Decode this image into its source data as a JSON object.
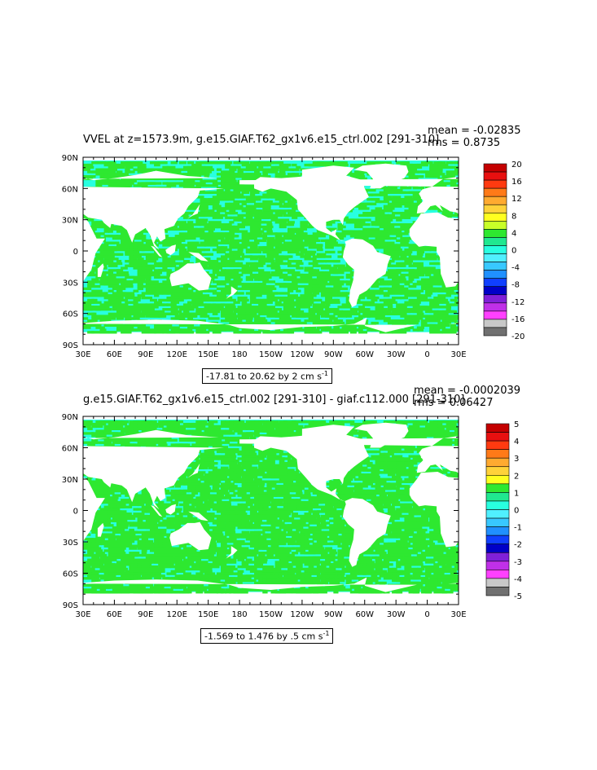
{
  "panels": [
    {
      "title": "VVEL at z=1573.9m, g.e15.GIAF.T62_gx1v6.e15_ctrl.002 [291-310]",
      "mean_label": "mean = -0.02835",
      "rms_label": "rms = 0.8735",
      "range_label": "-17.81 to 20.62 by 2 cm s",
      "range_unit_exp": "-1",
      "colorbar": {
        "labels": [
          "20",
          "16",
          "12",
          "8",
          "4",
          "0",
          "-4",
          "-8",
          "-12",
          "-16",
          "-20"
        ],
        "colors": [
          "#c40000",
          "#e81010",
          "#ff3a10",
          "#ff7a18",
          "#ffaa30",
          "#ffd23a",
          "#ffff20",
          "#c8ff28",
          "#2ee830",
          "#20e890",
          "#28ffe0",
          "#50f0ff",
          "#38c8ff",
          "#2090ff",
          "#1040ff",
          "#0000c8",
          "#8020d8",
          "#c030e8",
          "#ff40ff",
          "#c8c8c8",
          "#707070"
        ]
      }
    },
    {
      "title": "g.e15.GIAF.T62_gx1v6.e15_ctrl.002 [291-310] - giaf.c112.000 [291-310]",
      "mean_label": "mean = -0.0002039",
      "rms_label": "rms = 0.06427",
      "range_label": "-1.569 to 1.476 by .5 cm s",
      "range_unit_exp": "-1",
      "colorbar": {
        "labels": [
          "5",
          "4",
          "3",
          "2",
          "1",
          "0",
          "-1",
          "-2",
          "-3",
          "-4",
          "-5"
        ],
        "colors": [
          "#c40000",
          "#e81010",
          "#ff3a10",
          "#ff7a18",
          "#ffaa30",
          "#ffd23a",
          "#ffff20",
          "#2ee830",
          "#20e890",
          "#28ffe0",
          "#50f0ff",
          "#38c8ff",
          "#2090ff",
          "#1040ff",
          "#0000c8",
          "#8020d8",
          "#c030e8",
          "#ff40ff",
          "#c8c8c8",
          "#707070"
        ]
      }
    }
  ],
  "map": {
    "lat_ticks": [
      "90N",
      "60N",
      "30N",
      "0",
      "30S",
      "60S",
      "90S"
    ],
    "lon_ticks": [
      "30E",
      "60E",
      "90E",
      "120E",
      "150E",
      "180",
      "150W",
      "120W",
      "90W",
      "60W",
      "30W",
      "0",
      "30E"
    ],
    "ocean_colors": [
      "#28ffe0",
      "#2ee830"
    ],
    "land_color": "#ffffff"
  }
}
